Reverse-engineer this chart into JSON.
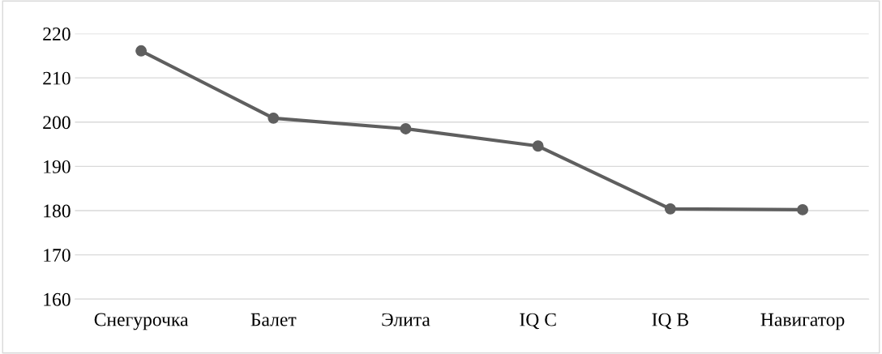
{
  "chart_data": {
    "type": "line",
    "categories": [
      "Снегурочка",
      "Балет",
      "Элита",
      "IQ C",
      "IQ B",
      "Навигатор"
    ],
    "series": [
      {
        "color": "#5f5f5f",
        "values": [
          216.1,
          200.9,
          198.5,
          194.6,
          180.4,
          180.2
        ]
      }
    ],
    "ylim": [
      160,
      220
    ],
    "yticks": [
      160,
      170,
      180,
      190,
      200,
      210,
      220
    ],
    "grid": "y",
    "marker": "circle",
    "line_style": "solid"
  }
}
